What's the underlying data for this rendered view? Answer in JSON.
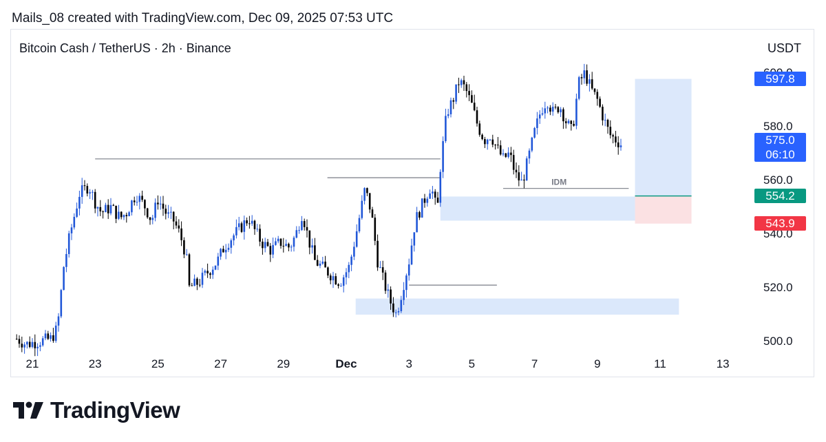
{
  "header": {
    "attribution": "Mails_08 created with TradingView.com, Dec 09, 2025 07:53 UTC"
  },
  "chart_data": {
    "type": "candlestick",
    "title": "Bitcoin Cash / TetherUS · 2h · Binance",
    "currency": "USDT",
    "y_range": [
      497,
      606
    ],
    "y_ticks": [
      "500.0",
      "520.0",
      "540.0",
      "560.0",
      "580.0",
      "600.0"
    ],
    "x_range": [
      20.5,
      14.2
    ],
    "x_ticks": [
      {
        "day": 21,
        "label": "21"
      },
      {
        "day": 23,
        "label": "23"
      },
      {
        "day": 25,
        "label": "25"
      },
      {
        "day": 27,
        "label": "27"
      },
      {
        "day": 29,
        "label": "29"
      },
      {
        "day": 31,
        "label": "Dec",
        "bold": true
      },
      {
        "day": 33,
        "label": "3"
      },
      {
        "day": 35,
        "label": "5"
      },
      {
        "day": 37,
        "label": "7"
      },
      {
        "day": 39,
        "label": "9"
      },
      {
        "day": 41,
        "label": "11"
      },
      {
        "day": 43,
        "label": "13"
      }
    ],
    "up_color": "#2157d8",
    "down_color": "#000000",
    "price_path": [
      [
        20.5,
        501
      ],
      [
        20.8,
        499
      ],
      [
        21.6,
        501
      ],
      [
        21.8,
        505
      ],
      [
        22.0,
        528
      ],
      [
        22.2,
        540
      ],
      [
        22.5,
        555
      ],
      [
        22.8,
        558
      ],
      [
        23.0,
        552
      ],
      [
        23.2,
        548
      ],
      [
        23.5,
        550
      ],
      [
        23.8,
        546
      ],
      [
        24.0,
        548
      ],
      [
        24.3,
        555
      ],
      [
        24.6,
        550
      ],
      [
        24.8,
        545
      ],
      [
        25.0,
        553
      ],
      [
        25.3,
        547
      ],
      [
        25.5,
        545
      ],
      [
        25.7,
        540
      ],
      [
        25.9,
        532
      ],
      [
        26.0,
        520
      ],
      [
        26.3,
        522
      ],
      [
        26.6,
        526
      ],
      [
        26.9,
        530
      ],
      [
        27.1,
        535
      ],
      [
        27.3,
        538
      ],
      [
        27.6,
        542
      ],
      [
        27.9,
        546
      ],
      [
        28.1,
        541
      ],
      [
        28.3,
        537
      ],
      [
        28.6,
        534
      ],
      [
        28.9,
        537
      ],
      [
        29.2,
        535
      ],
      [
        29.4,
        540
      ],
      [
        29.6,
        548
      ],
      [
        29.8,
        538
      ],
      [
        30.0,
        530
      ],
      [
        30.3,
        527
      ],
      [
        30.6,
        524
      ],
      [
        30.8,
        522
      ],
      [
        31.1,
        528
      ],
      [
        31.4,
        545
      ],
      [
        31.6,
        557
      ],
      [
        31.8,
        548
      ],
      [
        32.0,
        530
      ],
      [
        32.2,
        522
      ],
      [
        32.4,
        515
      ],
      [
        32.6,
        510
      ],
      [
        32.8,
        520
      ],
      [
        33.0,
        530
      ],
      [
        33.2,
        545
      ],
      [
        33.5,
        553
      ],
      [
        33.7,
        558
      ],
      [
        33.9,
        548
      ],
      [
        34.0,
        565
      ],
      [
        34.2,
        585
      ],
      [
        34.4,
        590
      ],
      [
        34.6,
        597
      ],
      [
        34.8,
        594
      ],
      [
        35.0,
        588
      ],
      [
        35.2,
        580
      ],
      [
        35.4,
        575
      ],
      [
        35.6,
        577
      ],
      [
        35.8,
        572
      ],
      [
        36.0,
        568
      ],
      [
        36.2,
        570
      ],
      [
        36.4,
        562
      ],
      [
        36.6,
        559
      ],
      [
        36.8,
        568
      ],
      [
        37.0,
        578
      ],
      [
        37.2,
        586
      ],
      [
        37.4,
        590
      ],
      [
        37.6,
        585
      ],
      [
        37.8,
        588
      ],
      [
        38.0,
        582
      ],
      [
        38.2,
        578
      ],
      [
        38.4,
        596
      ],
      [
        38.6,
        600
      ],
      [
        38.8,
        594
      ],
      [
        39.0,
        590
      ],
      [
        39.2,
        583
      ],
      [
        39.4,
        577
      ],
      [
        39.6,
        575
      ],
      [
        39.8,
        573
      ]
    ],
    "annotations": {
      "label": "IDM",
      "horizontal_levels": [
        {
          "from": 23.0,
          "to": 34.0,
          "price": 568
        },
        {
          "from": 30.4,
          "to": 34.0,
          "price": 561
        },
        {
          "from": 36.0,
          "to": 40.0,
          "price": 557
        },
        {
          "from": 33.0,
          "to": 35.8,
          "price": 521
        }
      ],
      "zones": [
        {
          "from": 34.0,
          "to": 41.0,
          "low": 545,
          "high": 554,
          "color": "#dbe8fb"
        },
        {
          "from": 31.3,
          "to": 41.6,
          "low": 510,
          "high": 516,
          "color": "#dbe8fb"
        }
      ],
      "position": {
        "from": 40.2,
        "to": 42.0,
        "entry": 554.2,
        "target": 597.8,
        "stop": 543.9,
        "profit_color": "#dce8fb",
        "loss_color": "#fbe1e3",
        "entry_line_color": "#089981"
      }
    },
    "price_labels": [
      {
        "text": "597.8",
        "price": 597.8,
        "color": "#2962ff"
      },
      {
        "text": "575.0",
        "price": 575.0,
        "color": "#2962ff",
        "countdown": "06:10"
      },
      {
        "text": "554.2",
        "price": 554.2,
        "color": "#089981"
      },
      {
        "text": "543.9",
        "price": 543.9,
        "color": "#f23645"
      }
    ]
  },
  "footer": {
    "brand": "TradingView"
  }
}
